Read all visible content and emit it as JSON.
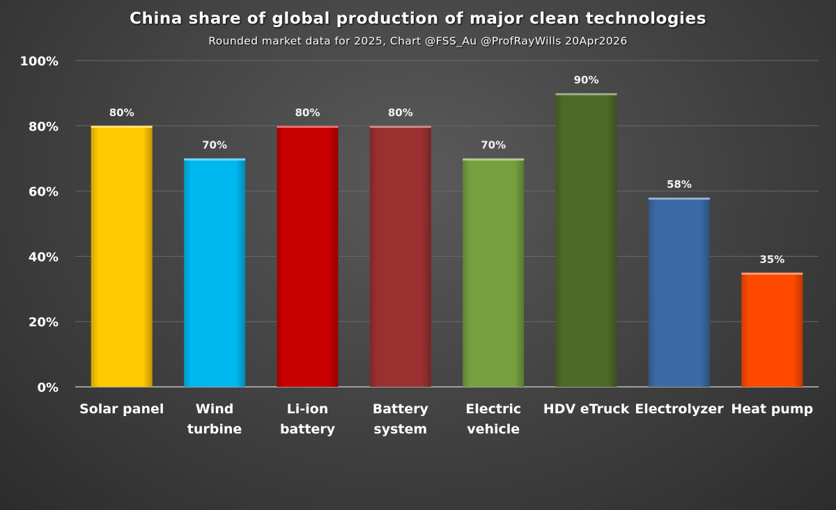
{
  "chart_data": {
    "type": "bar",
    "title": "China share of global production of major clean technologies",
    "subtitle": "Rounded market data for 2025, Chart @FSS_Au @ProfRayWills 20Apr2026",
    "categories": [
      [
        "Solar panel"
      ],
      [
        "Wind",
        "turbine"
      ],
      [
        "Li-ion",
        "battery"
      ],
      [
        "Battery",
        "system"
      ],
      [
        "Electric",
        "vehicle"
      ],
      [
        "HDV eTruck"
      ],
      [
        "Electrolyzer"
      ],
      [
        "Heat pump"
      ]
    ],
    "values": [
      80,
      70,
      80,
      80,
      70,
      90,
      58,
      35
    ],
    "data_labels": [
      "80%",
      "70%",
      "80%",
      "80%",
      "70%",
      "90%",
      "58%",
      "35%"
    ],
    "colors": [
      "#ffc800",
      "#00b8f0",
      "#c80000",
      "#9a3030",
      "#76a040",
      "#4e6a28",
      "#3c6aa4",
      "#ff4a00"
    ],
    "y_ticks": [
      0,
      20,
      40,
      60,
      80,
      100
    ],
    "y_tick_labels": [
      "0%",
      "20%",
      "40%",
      "60%",
      "80%",
      "100%"
    ],
    "ylim": [
      0,
      100
    ],
    "grid": true,
    "legend": "none"
  }
}
